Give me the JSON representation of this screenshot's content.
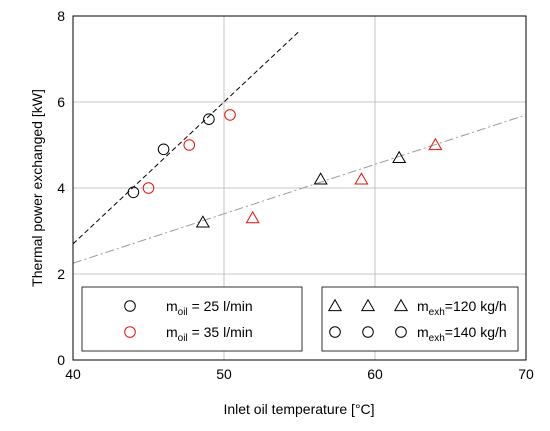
{
  "chart_data": {
    "type": "scatter",
    "xlabel": "Inlet oil temperature [°C]",
    "ylabel": "Thermal power exchanged [kW]",
    "xlim": [
      40,
      70
    ],
    "ylim": [
      0,
      8
    ],
    "xticks": [
      40,
      50,
      60,
      70
    ],
    "yticks": [
      0,
      2,
      4,
      6,
      8
    ],
    "grid": true,
    "series": [
      {
        "name": "oil_25_exh_140",
        "marker": "circle",
        "color": "#000000",
        "points": [
          [
            44.0,
            3.9
          ],
          [
            46.0,
            4.9
          ],
          [
            49.0,
            5.6
          ]
        ]
      },
      {
        "name": "oil_35_exh_140",
        "marker": "circle",
        "color": "#e8120c",
        "points": [
          [
            45.0,
            4.0
          ],
          [
            47.7,
            5.0
          ],
          [
            50.4,
            5.7
          ]
        ]
      },
      {
        "name": "oil_25_exh_120",
        "marker": "triangle",
        "color": "#000000",
        "points": [
          [
            48.6,
            3.2
          ],
          [
            56.4,
            4.2
          ],
          [
            61.6,
            4.7
          ]
        ]
      },
      {
        "name": "oil_35_exh_120",
        "marker": "triangle",
        "color": "#e8120c",
        "points": [
          [
            51.9,
            3.3
          ],
          [
            59.1,
            4.2
          ],
          [
            64.0,
            5.0
          ]
        ]
      }
    ],
    "trendlines": [
      {
        "style": "dashed",
        "from": [
          40,
          2.7
        ],
        "to": [
          55,
          7.65
        ]
      },
      {
        "style": "dash-dot",
        "color": "#9a9a9a",
        "from": [
          40,
          2.25
        ],
        "to": [
          70,
          5.7
        ]
      }
    ]
  },
  "legend_left": {
    "rows": [
      {
        "marker": "circle",
        "color": "#000000",
        "var": "m",
        "sub": "oil",
        "text": " = 25 l/min"
      },
      {
        "marker": "circle",
        "color": "#e8120c",
        "var": "m",
        "sub": "oil",
        "text": " = 35 l/min"
      }
    ]
  },
  "legend_right": {
    "rows": [
      {
        "marker": "triangle",
        "var": "m",
        "sub": "exh",
        "text": "=120 kg/h"
      },
      {
        "marker": "circle",
        "var": "m",
        "sub": "exh",
        "text": "=140 kg/h"
      }
    ]
  }
}
